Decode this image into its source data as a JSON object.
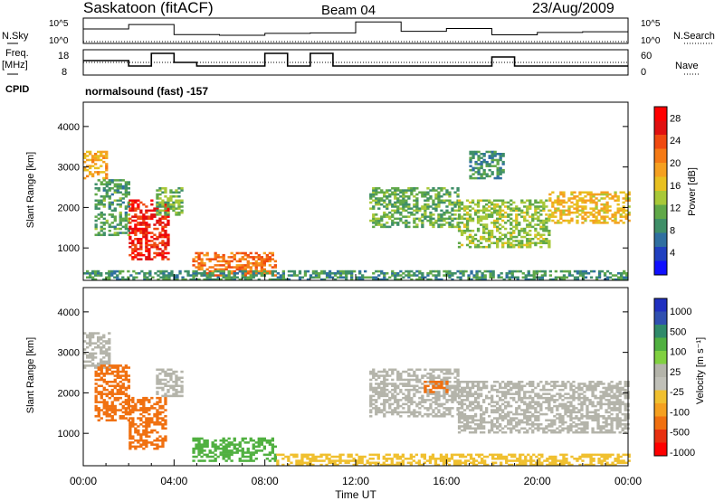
{
  "header": {
    "station": "Saskatoon (fitACF)",
    "beam": "Beam 04",
    "date": "23/Aug/2009"
  },
  "strips": {
    "nsky_label": "N.Sky",
    "nsearch_label": "N.Search",
    "nsky_ticks": [
      "10^5",
      "10^0"
    ],
    "nsearch_ticks": [
      "10^5",
      "10^0"
    ],
    "freq_label_1": "Freq.",
    "freq_label_2": "[MHz]",
    "freq_ticks": [
      "18",
      "8"
    ],
    "nave_label": "Nave",
    "nave_ticks": [
      "60",
      "0"
    ],
    "cpid_label": "CPID",
    "cpid_value": "normalsound (fast) -157"
  },
  "colors": {
    "power_scale": [
      "#1010ff",
      "#2040c0",
      "#2f6fa0",
      "#3f8f68",
      "#60a848",
      "#a8c838",
      "#e8c020",
      "#f5a020",
      "#f57a15",
      "#f04a10",
      "#e01010",
      "#ff0000"
    ],
    "velocity_scale": [
      "#2030c0",
      "#3050b0",
      "#2f8a6a",
      "#50b040",
      "#80d040",
      "#c8c8c0",
      "#c0c0b8",
      "#f0c030",
      "#f5a020",
      "#f07010",
      "#e83010",
      "#ff0000"
    ],
    "ground_scatter": "#b4b4aa"
  },
  "chart_data": [
    {
      "type": "line",
      "panel": "N.Sky / N.Search",
      "x": [
        "00:00",
        "02:00",
        "04:00",
        "06:00",
        "08:00",
        "10:00",
        "12:00",
        "14:00",
        "16:00",
        "18:00",
        "20:00",
        "22:00",
        "00:00"
      ],
      "series": [
        {
          "name": "N.Sky",
          "values": [
            1500,
            20000,
            60,
            40,
            120,
            150,
            90000,
            400,
            2000,
            50,
            200,
            300,
            800
          ]
        },
        {
          "name": "N.Search",
          "values": [
            1,
            1,
            1,
            1,
            1,
            1,
            1,
            1,
            1,
            1,
            1,
            1,
            1
          ]
        }
      ]
    },
    {
      "type": "line",
      "panel": "Freq. / Nave",
      "x": [
        "00:00",
        "01:00",
        "02:00",
        "03:00",
        "04:00",
        "05:00",
        "06:00",
        "07:00",
        "08:00",
        "09:00",
        "10:00",
        "11:00",
        "12:00",
        "13:00",
        "14:00",
        "15:00",
        "16:00",
        "17:00",
        "18:00",
        "19:00",
        "20:00",
        "21:00",
        "22:00",
        "23:00",
        "00:00"
      ],
      "series": [
        {
          "name": "Freq.",
          "values": [
            14,
            14,
            11,
            18,
            13,
            11,
            11,
            11,
            18,
            11,
            18,
            11,
            11,
            11,
            11,
            11,
            11,
            11,
            16,
            11,
            11,
            11,
            11,
            11,
            11
          ]
        },
        {
          "name": "Nave",
          "values": [
            30,
            30,
            30,
            30,
            30,
            30,
            30,
            30,
            30,
            30,
            30,
            30,
            30,
            30,
            30,
            30,
            30,
            30,
            30,
            30,
            30,
            30,
            30,
            30,
            30
          ]
        }
      ]
    },
    {
      "type": "heatmap",
      "panel": "Power",
      "xlabel": "Time UT",
      "ylabel": "Slant Range [km]",
      "xticks": [
        "00:00",
        "04:00",
        "08:00",
        "12:00",
        "16:00",
        "20:00",
        "00:00"
      ],
      "yticks": [
        "1000",
        "2000",
        "3000",
        "4000"
      ],
      "xlim": [
        0,
        24
      ],
      "ylim": [
        200,
        4600
      ],
      "colorbar": {
        "label": "Power [dB]",
        "ticks": [
          "4",
          "8",
          "12",
          "16",
          "20",
          "24",
          "28"
        ],
        "range": [
          0,
          30
        ]
      },
      "regions": [
        {
          "t0": 0.0,
          "t1": 1.0,
          "r0": 2700,
          "r1": 3400,
          "val": 18
        },
        {
          "t0": 0.5,
          "t1": 2.0,
          "r0": 1300,
          "r1": 2700,
          "val": 10
        },
        {
          "t0": 2.0,
          "t1": 3.7,
          "r0": 700,
          "r1": 2200,
          "val": 26
        },
        {
          "t0": 3.2,
          "t1": 4.3,
          "r0": 1800,
          "r1": 2500,
          "val": 12
        },
        {
          "t0": 4.8,
          "t1": 8.5,
          "r0": 300,
          "r1": 900,
          "val": 22
        },
        {
          "t0": 0.0,
          "t1": 24.0,
          "r0": 200,
          "r1": 450,
          "val": 9
        },
        {
          "t0": 12.6,
          "t1": 16.5,
          "r0": 1500,
          "r1": 2500,
          "val": 11
        },
        {
          "t0": 16.5,
          "t1": 20.5,
          "r0": 1000,
          "r1": 2200,
          "val": 13
        },
        {
          "t0": 20.5,
          "t1": 24.0,
          "r0": 1600,
          "r1": 2400,
          "val": 17
        },
        {
          "t0": 17.0,
          "t1": 18.5,
          "r0": 2700,
          "r1": 3400,
          "val": 9
        }
      ]
    },
    {
      "type": "heatmap",
      "panel": "Velocity",
      "xlabel": "Time UT",
      "ylabel": "Slant Range [km]",
      "xticks": [
        "00:00",
        "04:00",
        "08:00",
        "12:00",
        "16:00",
        "20:00",
        "00:00"
      ],
      "yticks": [
        "1000",
        "2000",
        "3000",
        "4000"
      ],
      "xlim": [
        0,
        24
      ],
      "ylim": [
        200,
        4600
      ],
      "colorbar": {
        "label": "Velocity [m s⁻¹]",
        "ticks": [
          "1000",
          "500",
          "100",
          "25",
          "-25",
          "-100",
          "-500",
          "-1000"
        ]
      },
      "regions": [
        {
          "t0": 0.0,
          "t1": 1.2,
          "r0": 2600,
          "r1": 3500,
          "val": 0
        },
        {
          "t0": 0.5,
          "t1": 2.0,
          "r0": 1300,
          "r1": 2700,
          "val": -150
        },
        {
          "t0": 2.0,
          "t1": 3.6,
          "r0": 600,
          "r1": 1900,
          "val": -300
        },
        {
          "t0": 3.2,
          "t1": 4.3,
          "r0": 1900,
          "r1": 2600,
          "val": 0
        },
        {
          "t0": 4.8,
          "t1": 8.5,
          "r0": 300,
          "r1": 900,
          "val": 80
        },
        {
          "t0": 8.5,
          "t1": 24.0,
          "r0": 200,
          "r1": 500,
          "val": -80
        },
        {
          "t0": 12.6,
          "t1": 16.5,
          "r0": 1400,
          "r1": 2600,
          "val": 0
        },
        {
          "t0": 16.5,
          "t1": 24.0,
          "r0": 1000,
          "r1": 2300,
          "val": 0
        },
        {
          "t0": 15.0,
          "t1": 16.0,
          "r0": 2000,
          "r1": 2300,
          "val": -300
        }
      ]
    }
  ]
}
